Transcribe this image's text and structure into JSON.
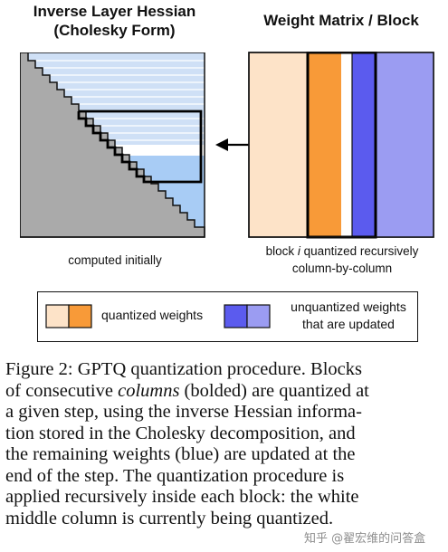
{
  "left_panel": {
    "title_line1": "Inverse Layer Hessian",
    "title_line2": "(Cholesky Form)",
    "caption": "computed initially"
  },
  "right_panel": {
    "title": "Weight Matrix / Block",
    "caption_line1_pre": "block ",
    "caption_line1_italic": "i",
    "caption_line1_post": " quantized recursively",
    "caption_line2": "column-by-column"
  },
  "legend": {
    "quantized_label": "quantized weights",
    "unquantized_label_line1": "unquantized weights",
    "unquantized_label_line2": "that are updated"
  },
  "colors": {
    "light_blue": "#bdd7f7",
    "blue_fill": "#a8ccf5",
    "gray": "#aaaaaa",
    "peach": "#fde3c8",
    "orange": "#f89a38",
    "blue_dark": "#5b5bee",
    "blue_light": "#9b9cf2"
  },
  "figure_caption": {
    "line1": "Figure 2: GPTQ quantization procedure. Blocks",
    "line2_pre": "of consecutive ",
    "line2_italic": "columns",
    "line2_post": " (bolded) are quantized at",
    "line3": "a given step, using the inverse Hessian informa-",
    "line4": "tion stored in the Cholesky decomposition, and",
    "line5": "the remaining weights (blue) are updated at the",
    "line6": "end of the step.  The quantization procedure is",
    "line7": "applied recursively inside each block: the white",
    "line8": "middle column is currently being quantized."
  },
  "watermark": "知乎 @翟宏维的问答盒"
}
